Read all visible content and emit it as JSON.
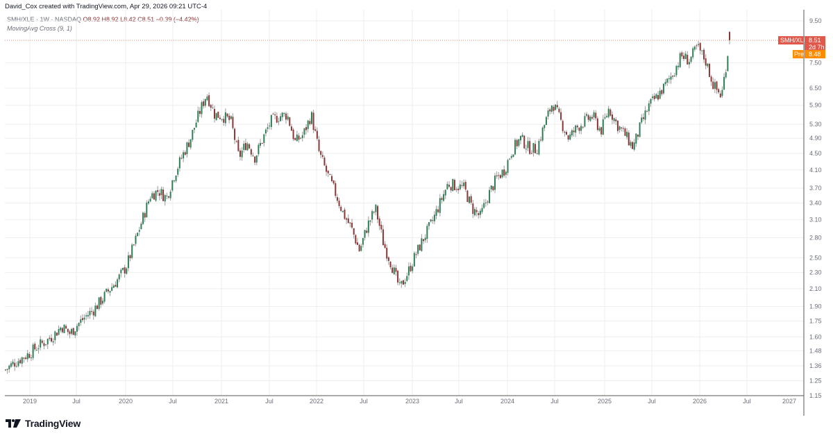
{
  "header": {
    "credit": "David_Cox created with TradingView.com, Apr 29, 2026 09:21 UTC-4",
    "symbol_line": "SMH/XLE · 1W · NASDAQ",
    "ohlc": "O8.92  H8.92  L8.42  C8.51  −0.39 (−4.42%)",
    "indicator": "MovingAvg Cross (9, 1)"
  },
  "price_tags": {
    "symbol": "SMH/XLE",
    "last": "8.51",
    "countdown": "2d 7h",
    "pre_label": "Pre",
    "pre_value": "8.48"
  },
  "footer": {
    "brand": "TradingView"
  },
  "colors": {
    "up": "#2e7d55",
    "down": "#8b3535",
    "wick": "#9a9a9a",
    "grid": "#eeeeee",
    "last_price_tag": "#e0584a",
    "pre_tag": "#ff8c00",
    "last_price_line": "#ef8a6a"
  },
  "chart_data": {
    "type": "candlestick",
    "title": "SMH/XLE · 1W · NASDAQ",
    "scale": "log",
    "xlabel": "",
    "ylabel": "",
    "ylim": [
      1.15,
      9.9
    ],
    "grid": true,
    "x_ticks": [
      "2019",
      "Jul",
      "2020",
      "Jul",
      "2021",
      "Jul",
      "2022",
      "Jul",
      "2023",
      "Jul",
      "2024",
      "Jul",
      "2025",
      "Jul",
      "2026",
      "Jul",
      "2027"
    ],
    "y_ticks": [
      9.5,
      7.5,
      6.5,
      5.9,
      5.3,
      4.9,
      4.5,
      4.1,
      3.7,
      3.4,
      3.1,
      2.8,
      2.5,
      2.3,
      2.1,
      1.9,
      1.75,
      1.6,
      1.48,
      1.36,
      1.25,
      1.15
    ],
    "last": {
      "open": 8.92,
      "high": 8.92,
      "low": 8.42,
      "close": 8.51,
      "change": -0.39,
      "change_pct": -4.42
    },
    "premarket": 8.48,
    "series": [
      {
        "name": "SMH/XLE close (approx. monthly, read from chart)",
        "x": [
          "2018-10",
          "2018-11",
          "2018-12",
          "2019-01",
          "2019-02",
          "2019-03",
          "2019-04",
          "2019-05",
          "2019-06",
          "2019-07",
          "2019-08",
          "2019-09",
          "2019-10",
          "2019-11",
          "2019-12",
          "2020-01",
          "2020-02",
          "2020-03",
          "2020-04",
          "2020-05",
          "2020-06",
          "2020-07",
          "2020-08",
          "2020-09",
          "2020-10",
          "2020-11",
          "2020-12",
          "2021-01",
          "2021-02",
          "2021-03",
          "2021-04",
          "2021-05",
          "2021-06",
          "2021-07",
          "2021-08",
          "2021-09",
          "2021-10",
          "2021-11",
          "2021-12",
          "2022-01",
          "2022-02",
          "2022-03",
          "2022-04",
          "2022-05",
          "2022-06",
          "2022-07",
          "2022-08",
          "2022-09",
          "2022-10",
          "2022-11",
          "2022-12",
          "2023-01",
          "2023-02",
          "2023-03",
          "2023-04",
          "2023-05",
          "2023-06",
          "2023-07",
          "2023-08",
          "2023-09",
          "2023-10",
          "2023-11",
          "2023-12",
          "2024-01",
          "2024-02",
          "2024-03",
          "2024-04",
          "2024-05",
          "2024-06",
          "2024-07",
          "2024-08",
          "2024-09",
          "2024-10",
          "2024-11",
          "2024-12",
          "2025-01",
          "2025-02",
          "2025-03",
          "2025-04",
          "2025-05",
          "2025-06",
          "2025-07",
          "2025-08",
          "2025-09",
          "2025-10",
          "2025-11",
          "2025-12",
          "2026-01",
          "2026-02",
          "2026-03",
          "2026-04"
        ],
        "values": [
          1.33,
          1.38,
          1.42,
          1.46,
          1.52,
          1.56,
          1.62,
          1.7,
          1.63,
          1.72,
          1.8,
          1.87,
          1.98,
          2.1,
          2.22,
          2.38,
          2.7,
          3.1,
          3.55,
          3.65,
          3.5,
          4.0,
          4.45,
          4.9,
          5.6,
          6.3,
          5.6,
          5.55,
          5.4,
          4.4,
          4.8,
          4.4,
          4.9,
          5.4,
          5.55,
          5.6,
          4.8,
          5.0,
          5.6,
          4.5,
          4.0,
          3.6,
          3.2,
          2.95,
          2.6,
          3.0,
          3.3,
          2.7,
          2.4,
          2.1,
          2.3,
          2.55,
          2.8,
          3.05,
          3.4,
          3.8,
          3.75,
          3.7,
          3.3,
          3.15,
          3.55,
          3.9,
          4.1,
          4.6,
          4.9,
          4.65,
          4.6,
          5.3,
          6.0,
          5.4,
          4.9,
          5.2,
          5.4,
          5.55,
          5.1,
          5.8,
          5.3,
          5.0,
          4.65,
          5.3,
          5.9,
          6.2,
          6.6,
          7.1,
          7.8,
          7.6,
          8.2,
          7.6,
          6.6,
          6.2,
          8.51
        ]
      }
    ]
  }
}
